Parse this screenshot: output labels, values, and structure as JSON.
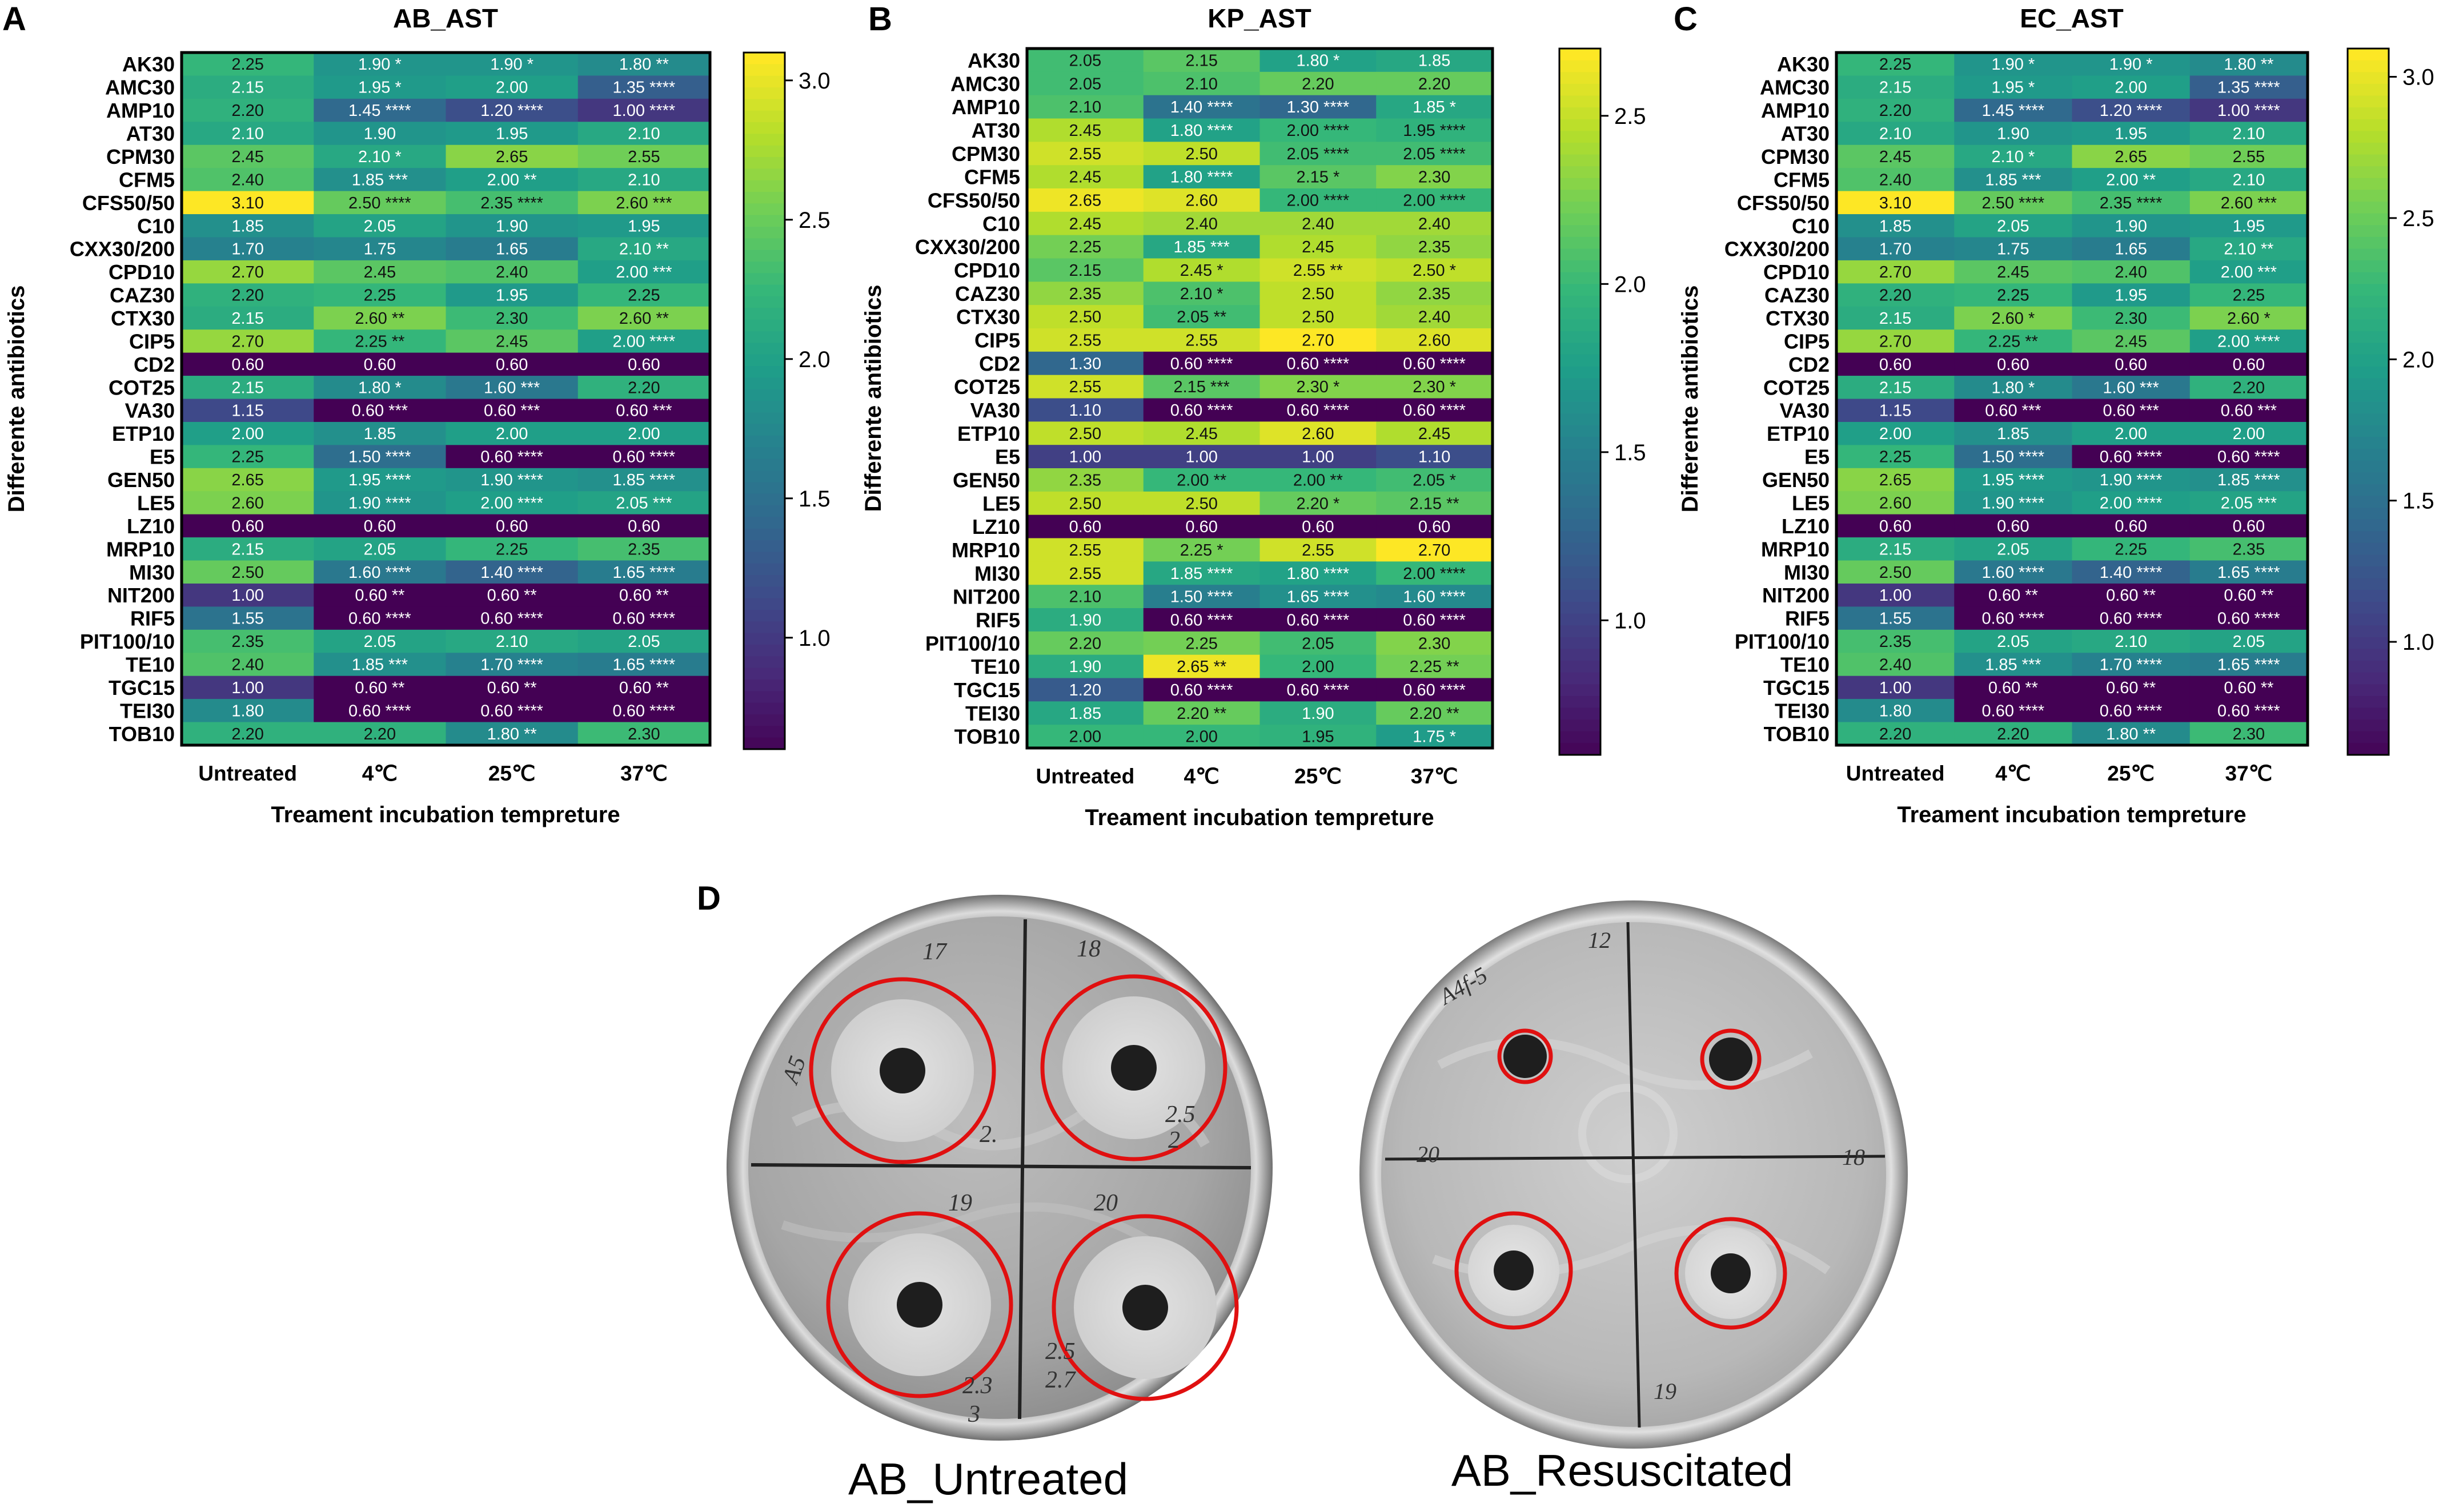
{
  "figure_labels": {
    "A": "A",
    "B": "B",
    "C": "C",
    "D": "D"
  },
  "colorscale_name": "viridis",
  "chart_data": [
    {
      "type": "heatmap",
      "title": "AB_AST",
      "xlabel": "Treament incubation tempreture",
      "ylabel": "Differente antibiotics",
      "x_categories": [
        "Untreated",
        "4℃",
        "25℃",
        "37℃"
      ],
      "y_categories": [
        "AK30",
        "AMC30",
        "AMP10",
        "AT30",
        "CPM30",
        "CFM5",
        "CFS50/50",
        "C10",
        "CXX30/200",
        "CPD10",
        "CAZ30",
        "CTX30",
        "CIP5",
        "CD2",
        "COT25",
        "VA30",
        "ETP10",
        "E5",
        "GEN50",
        "LE5",
        "LZ10",
        "MRP10",
        "MI30",
        "NIT200",
        "RIF5",
        "PIT100/10",
        "TE10",
        "TGC15",
        "TEI30",
        "TOB10"
      ],
      "values": [
        [
          2.25,
          1.9,
          1.9,
          1.8
        ],
        [
          2.15,
          1.95,
          2.0,
          1.35
        ],
        [
          2.2,
          1.45,
          1.2,
          1.0
        ],
        [
          2.1,
          1.9,
          1.95,
          2.1
        ],
        [
          2.45,
          2.1,
          2.65,
          2.55
        ],
        [
          2.4,
          1.85,
          2.0,
          2.1
        ],
        [
          3.1,
          2.5,
          2.35,
          2.6
        ],
        [
          1.85,
          2.05,
          1.9,
          1.95
        ],
        [
          1.7,
          1.75,
          1.65,
          2.1
        ],
        [
          2.7,
          2.45,
          2.4,
          2.0
        ],
        [
          2.2,
          2.25,
          1.95,
          2.25
        ],
        [
          2.15,
          2.6,
          2.3,
          2.6
        ],
        [
          2.7,
          2.25,
          2.45,
          2.0
        ],
        [
          0.6,
          0.6,
          0.6,
          0.6
        ],
        [
          2.15,
          1.8,
          1.6,
          2.2
        ],
        [
          1.15,
          0.6,
          0.6,
          0.6
        ],
        [
          2.0,
          1.85,
          2.0,
          2.0
        ],
        [
          2.25,
          1.5,
          0.6,
          0.6
        ],
        [
          2.65,
          1.95,
          1.9,
          1.85
        ],
        [
          2.6,
          1.9,
          2.0,
          2.05
        ],
        [
          0.6,
          0.6,
          0.6,
          0.6
        ],
        [
          2.15,
          2.05,
          2.25,
          2.35
        ],
        [
          2.5,
          1.6,
          1.4,
          1.65
        ],
        [
          1.0,
          0.6,
          0.6,
          0.6
        ],
        [
          1.55,
          0.6,
          0.6,
          0.6
        ],
        [
          2.35,
          2.05,
          2.1,
          2.05
        ],
        [
          2.4,
          1.85,
          1.7,
          1.65
        ],
        [
          1.0,
          0.6,
          0.6,
          0.6
        ],
        [
          1.8,
          0.6,
          0.6,
          0.6
        ],
        [
          2.2,
          2.2,
          1.8,
          2.3
        ]
      ],
      "stars": [
        [
          "",
          "*",
          "*",
          "**"
        ],
        [
          "",
          "*",
          "",
          "****"
        ],
        [
          "",
          "****",
          "****",
          "****"
        ],
        [
          "",
          "",
          "",
          ""
        ],
        [
          "",
          "*",
          "",
          ""
        ],
        [
          "",
          "***",
          "**",
          ""
        ],
        [
          "",
          "****",
          "****",
          "***"
        ],
        [
          "",
          "",
          "",
          ""
        ],
        [
          "",
          "",
          "",
          "**"
        ],
        [
          "",
          "",
          "",
          "***"
        ],
        [
          "",
          "",
          "",
          ""
        ],
        [
          "",
          "**",
          "",
          "**"
        ],
        [
          "",
          "**",
          "",
          "****"
        ],
        [
          "",
          "",
          "",
          ""
        ],
        [
          "",
          "*",
          "***",
          ""
        ],
        [
          "",
          "***",
          "***",
          "***"
        ],
        [
          "",
          "",
          "",
          ""
        ],
        [
          "",
          "****",
          "****",
          "****"
        ],
        [
          "",
          "****",
          "****",
          "****"
        ],
        [
          "",
          "****",
          "****",
          "***"
        ],
        [
          "",
          "",
          "",
          ""
        ],
        [
          "",
          "",
          "",
          ""
        ],
        [
          "",
          "****",
          "****",
          "****"
        ],
        [
          "",
          "**",
          "**",
          "**"
        ],
        [
          "",
          "****",
          "****",
          "****"
        ],
        [
          "",
          "",
          "",
          ""
        ],
        [
          "",
          "***",
          "****",
          "****"
        ],
        [
          "",
          "**",
          "**",
          "**"
        ],
        [
          "",
          "****",
          "****",
          "****"
        ],
        [
          "",
          "",
          "**",
          ""
        ]
      ],
      "colorbar": {
        "min": 0.6,
        "max": 3.1,
        "ticks": [
          1.0,
          1.5,
          2.0,
          2.5,
          3.0
        ]
      }
    },
    {
      "type": "heatmap",
      "title": "KP_AST",
      "xlabel": "Treament incubation tempreture",
      "ylabel": "Differente antibiotics",
      "x_categories": [
        "Untreated",
        "4℃",
        "25℃",
        "37℃"
      ],
      "y_categories": [
        "AK30",
        "AMC30",
        "AMP10",
        "AT30",
        "CPM30",
        "CFM5",
        "CFS50/50",
        "C10",
        "CXX30/200",
        "CPD10",
        "CAZ30",
        "CTX30",
        "CIP5",
        "CD2",
        "COT25",
        "VA30",
        "ETP10",
        "E5",
        "GEN50",
        "LE5",
        "LZ10",
        "MRP10",
        "MI30",
        "NIT200",
        "RIF5",
        "PIT100/10",
        "TE10",
        "TGC15",
        "TEI30",
        "TOB10"
      ],
      "values": [
        [
          2.05,
          2.15,
          1.8,
          1.85
        ],
        [
          2.05,
          2.1,
          2.2,
          2.2
        ],
        [
          2.1,
          1.4,
          1.3,
          1.85
        ],
        [
          2.45,
          1.8,
          2.0,
          1.95
        ],
        [
          2.55,
          2.5,
          2.05,
          2.05
        ],
        [
          2.45,
          1.8,
          2.15,
          2.3
        ],
        [
          2.65,
          2.6,
          2.0,
          2.0
        ],
        [
          2.45,
          2.4,
          2.4,
          2.4
        ],
        [
          2.25,
          1.85,
          2.45,
          2.35
        ],
        [
          2.15,
          2.45,
          2.55,
          2.5
        ],
        [
          2.35,
          2.1,
          2.5,
          2.35
        ],
        [
          2.5,
          2.05,
          2.5,
          2.4
        ],
        [
          2.55,
          2.55,
          2.7,
          2.6
        ],
        [
          1.3,
          0.6,
          0.6,
          0.6
        ],
        [
          2.55,
          2.15,
          2.3,
          2.3
        ],
        [
          1.1,
          0.6,
          0.6,
          0.6
        ],
        [
          2.5,
          2.45,
          2.6,
          2.45
        ],
        [
          1.0,
          1.0,
          1.0,
          1.1
        ],
        [
          2.35,
          2.0,
          2.0,
          2.05
        ],
        [
          2.5,
          2.5,
          2.2,
          2.15
        ],
        [
          0.6,
          0.6,
          0.6,
          0.6
        ],
        [
          2.55,
          2.25,
          2.55,
          2.7
        ],
        [
          2.55,
          1.85,
          1.8,
          2.0
        ],
        [
          2.1,
          1.5,
          1.65,
          1.6
        ],
        [
          1.9,
          0.6,
          0.6,
          0.6
        ],
        [
          2.2,
          2.25,
          2.05,
          2.3
        ],
        [
          1.9,
          2.65,
          2.0,
          2.25
        ],
        [
          1.2,
          0.6,
          0.6,
          0.6
        ],
        [
          1.85,
          2.2,
          1.9,
          2.2
        ],
        [
          2.0,
          2.0,
          1.95,
          1.75
        ]
      ],
      "stars": [
        [
          "",
          "",
          "*",
          ""
        ],
        [
          "",
          "",
          "",
          ""
        ],
        [
          "",
          "****",
          "****",
          "*"
        ],
        [
          "",
          "****",
          "****",
          "****"
        ],
        [
          "",
          "",
          "****",
          "****"
        ],
        [
          "",
          "****",
          "*",
          ""
        ],
        [
          "",
          "",
          "****",
          "****"
        ],
        [
          "",
          "",
          "",
          ""
        ],
        [
          "",
          "***",
          "",
          ""
        ],
        [
          "",
          "*",
          "**",
          "*"
        ],
        [
          "",
          "*",
          "",
          ""
        ],
        [
          "",
          "**",
          "",
          ""
        ],
        [
          "",
          "",
          "",
          ""
        ],
        [
          "",
          "****",
          "****",
          "****"
        ],
        [
          "",
          "***",
          "*",
          "*"
        ],
        [
          "",
          "****",
          "****",
          "****"
        ],
        [
          "",
          "",
          "",
          ""
        ],
        [
          "",
          "",
          "",
          ""
        ],
        [
          "",
          "**",
          "**",
          "*"
        ],
        [
          "",
          "",
          "*",
          "**"
        ],
        [
          "",
          "",
          "",
          ""
        ],
        [
          "",
          "*",
          "",
          ""
        ],
        [
          "",
          "****",
          "****",
          "****"
        ],
        [
          "",
          "****",
          "****",
          "****"
        ],
        [
          "",
          "****",
          "****",
          "****"
        ],
        [
          "",
          "",
          "",
          ""
        ],
        [
          "",
          "**",
          "",
          "**"
        ],
        [
          "",
          "****",
          "****",
          "****"
        ],
        [
          "",
          "**",
          "",
          "**"
        ],
        [
          "",
          "",
          "",
          "*"
        ]
      ],
      "colorbar": {
        "min": 0.6,
        "max": 2.7,
        "ticks": [
          1.0,
          1.5,
          2.0,
          2.5
        ]
      }
    },
    {
      "type": "heatmap",
      "title": "EC_AST",
      "xlabel": "Treament incubation tempreture",
      "ylabel": "Differente antibiotics",
      "x_categories": [
        "Untreated",
        "4℃",
        "25℃",
        "37℃"
      ],
      "y_categories": [
        "AK30",
        "AMC30",
        "AMP10",
        "AT30",
        "CPM30",
        "CFM5",
        "CFS50/50",
        "C10",
        "CXX30/200",
        "CPD10",
        "CAZ30",
        "CTX30",
        "CIP5",
        "CD2",
        "COT25",
        "VA30",
        "ETP10",
        "E5",
        "GEN50",
        "LE5",
        "LZ10",
        "MRP10",
        "MI30",
        "NIT200",
        "RIF5",
        "PIT100/10",
        "TE10",
        "TGC15",
        "TEI30",
        "TOB10"
      ],
      "values": [
        [
          2.25,
          1.9,
          1.9,
          1.8
        ],
        [
          2.15,
          1.95,
          2.0,
          1.35
        ],
        [
          2.2,
          1.45,
          1.2,
          1.0
        ],
        [
          2.1,
          1.9,
          1.95,
          2.1
        ],
        [
          2.45,
          2.1,
          2.65,
          2.55
        ],
        [
          2.4,
          1.85,
          2.0,
          2.1
        ],
        [
          3.1,
          2.5,
          2.35,
          2.6
        ],
        [
          1.85,
          2.05,
          1.9,
          1.95
        ],
        [
          1.7,
          1.75,
          1.65,
          2.1
        ],
        [
          2.7,
          2.45,
          2.4,
          2.0
        ],
        [
          2.2,
          2.25,
          1.95,
          2.25
        ],
        [
          2.15,
          2.6,
          2.3,
          2.6
        ],
        [
          2.7,
          2.25,
          2.45,
          2.0
        ],
        [
          0.6,
          0.6,
          0.6,
          0.6
        ],
        [
          2.15,
          1.8,
          1.6,
          2.2
        ],
        [
          1.15,
          0.6,
          0.6,
          0.6
        ],
        [
          2.0,
          1.85,
          2.0,
          2.0
        ],
        [
          2.25,
          1.5,
          0.6,
          0.6
        ],
        [
          2.65,
          1.95,
          1.9,
          1.85
        ],
        [
          2.6,
          1.9,
          2.0,
          2.05
        ],
        [
          0.6,
          0.6,
          0.6,
          0.6
        ],
        [
          2.15,
          2.05,
          2.25,
          2.35
        ],
        [
          2.5,
          1.6,
          1.4,
          1.65
        ],
        [
          1.0,
          0.6,
          0.6,
          0.6
        ],
        [
          1.55,
          0.6,
          0.6,
          0.6
        ],
        [
          2.35,
          2.05,
          2.1,
          2.05
        ],
        [
          2.4,
          1.85,
          1.7,
          1.65
        ],
        [
          1.0,
          0.6,
          0.6,
          0.6
        ],
        [
          1.8,
          0.6,
          0.6,
          0.6
        ],
        [
          2.2,
          2.2,
          1.8,
          2.3
        ]
      ],
      "stars": [
        [
          "",
          "*",
          "*",
          "**"
        ],
        [
          "",
          "*",
          "",
          "****"
        ],
        [
          "",
          "****",
          "****",
          "****"
        ],
        [
          "",
          "",
          "",
          ""
        ],
        [
          "",
          "*",
          "",
          ""
        ],
        [
          "",
          "***",
          "**",
          ""
        ],
        [
          "",
          "****",
          "****",
          "***"
        ],
        [
          "",
          "",
          "",
          ""
        ],
        [
          "",
          "",
          "",
          "**"
        ],
        [
          "",
          "",
          "",
          "***"
        ],
        [
          "",
          "",
          "",
          ""
        ],
        [
          "",
          "*",
          "",
          "*"
        ],
        [
          "",
          "**",
          "",
          "****"
        ],
        [
          "",
          "",
          "",
          ""
        ],
        [
          "",
          "*",
          "***",
          ""
        ],
        [
          "",
          "***",
          "***",
          "***"
        ],
        [
          "",
          "",
          "",
          ""
        ],
        [
          "",
          "****",
          "****",
          "****"
        ],
        [
          "",
          "****",
          "****",
          "****"
        ],
        [
          "",
          "****",
          "****",
          "***"
        ],
        [
          "",
          "",
          "",
          ""
        ],
        [
          "",
          "",
          "",
          ""
        ],
        [
          "",
          "****",
          "****",
          "****"
        ],
        [
          "",
          "**",
          "**",
          "**"
        ],
        [
          "",
          "****",
          "****",
          "****"
        ],
        [
          "",
          "",
          "",
          ""
        ],
        [
          "",
          "***",
          "****",
          "****"
        ],
        [
          "",
          "**",
          "**",
          "**"
        ],
        [
          "",
          "****",
          "****",
          "****"
        ],
        [
          "",
          "",
          "**",
          ""
        ]
      ],
      "colorbar": {
        "min": 0.6,
        "max": 3.1,
        "ticks": [
          1.0,
          1.5,
          2.0,
          2.5,
          3.0
        ]
      }
    }
  ],
  "plates": [
    {
      "caption": "AB_Untreated",
      "handwriting": [
        "17",
        "18",
        "A5",
        "19",
        "20",
        "2.",
        "2.5",
        "2",
        "2.3",
        "3",
        "2.5",
        "2.7"
      ]
    },
    {
      "caption": "AB_Resuscitated",
      "handwriting": [
        "12",
        "A4f-5",
        "20",
        "18",
        "19"
      ]
    }
  ]
}
